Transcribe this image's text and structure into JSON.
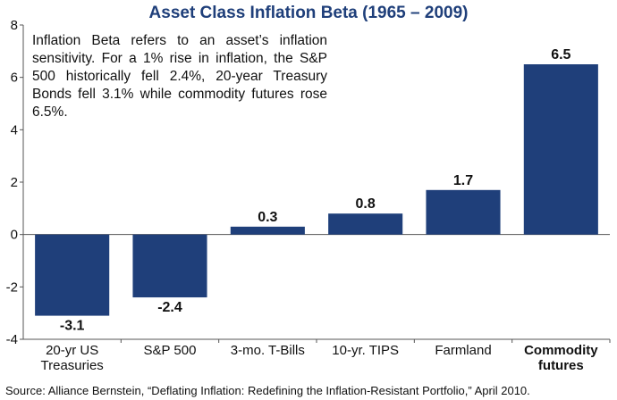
{
  "chart_data": {
    "type": "bar",
    "title": "Asset Class Inflation Beta (1965 – 2009)",
    "categories": [
      "20-yr US\nTreasuries",
      "S&P 500",
      "3-mo. T-Bills",
      "10-yr. TIPS",
      "Farmland",
      "Commodity\nfutures"
    ],
    "values": [
      -3.1,
      -2.4,
      0.3,
      0.8,
      1.7,
      6.5
    ],
    "value_labels": [
      "-3.1",
      "-2.4",
      "0.3",
      "0.8",
      "1.7",
      "6.5"
    ],
    "bold_categories": [
      false,
      false,
      false,
      false,
      false,
      true
    ],
    "ylim": [
      -4,
      8
    ],
    "yticks": [
      -4,
      -2,
      0,
      2,
      4,
      6,
      8
    ],
    "xlabel": "",
    "ylabel": "",
    "bar_color": "#1f3f7a",
    "title_color": "#1f3f7a",
    "grid": false,
    "annotation": "Inflation Beta refers to an asset’s inflation sensitivity. For a 1% rise in inflation, the S&P 500 historically fell 2.4%, 20-year Treasury Bonds fell 3.1% while commodity futures rose 6.5%.",
    "source": "Source: Alliance Bernstein, “Deflating Inflation: Redefining the Inflation-Resistant Portfolio,” April 2010."
  }
}
